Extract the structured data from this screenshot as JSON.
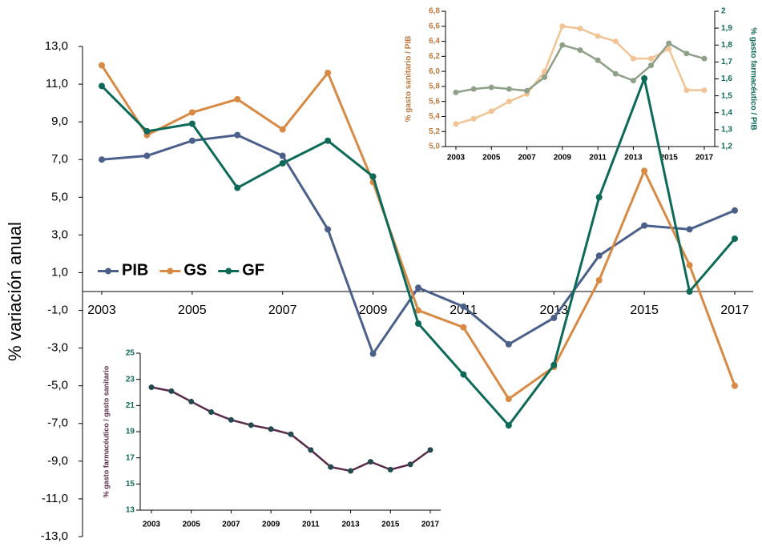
{
  "chart_data": [
    {
      "type": "line",
      "ylabel": "% variación anual",
      "legend": "left",
      "x": [
        2003,
        2004,
        2005,
        2006,
        2007,
        2008,
        2009,
        2010,
        2011,
        2012,
        2013,
        2014,
        2015,
        2016,
        2017
      ],
      "xlim": [
        2003,
        2017
      ],
      "xticks": [
        2003,
        2005,
        2007,
        2009,
        2011,
        2013,
        2015,
        2017
      ],
      "ylim": [
        -13,
        13
      ],
      "yticks": [
        {
          "value": -13,
          "label": "-13,0"
        },
        {
          "value": -11,
          "label": "-11,0"
        },
        {
          "value": -9,
          "label": "-9,0"
        },
        {
          "value": -7,
          "label": "-7,0"
        },
        {
          "value": -5,
          "label": "-5,0"
        },
        {
          "value": -3,
          "label": "-3,0"
        },
        {
          "value": -1,
          "label": "-1,0"
        },
        {
          "value": 1,
          "label": "1,0"
        },
        {
          "value": 3,
          "label": "3,0"
        },
        {
          "value": 5,
          "label": "5,0"
        },
        {
          "value": 7,
          "label": "7,0"
        },
        {
          "value": 9,
          "label": "9,0"
        },
        {
          "value": 11,
          "label": "11,0"
        },
        {
          "value": 13,
          "label": "13,0"
        }
      ],
      "series": [
        {
          "name": "PIB",
          "color": "#4a5f8a",
          "values": [
            7.0,
            7.2,
            8.0,
            8.3,
            7.2,
            3.3,
            -3.3,
            0.2,
            -0.8,
            -2.8,
            -1.4,
            1.9,
            3.5,
            3.3,
            4.3
          ]
        },
        {
          "name": "GS",
          "color": "#d88a44",
          "values": [
            12.0,
            8.3,
            9.5,
            10.2,
            8.6,
            11.6,
            5.8,
            -1.0,
            -1.9,
            -5.7,
            -4.0,
            0.6,
            6.4,
            1.4,
            -5.0
          ]
        },
        {
          "name": "GF",
          "color": "#0e6a58",
          "values": [
            10.9,
            8.5,
            8.9,
            5.5,
            6.8,
            8.0,
            6.1,
            -1.7,
            -4.4,
            -7.1,
            -3.9,
            5.0,
            11.3,
            0.0,
            2.8
          ]
        }
      ]
    },
    {
      "type": "line",
      "ylabel": "% gasto sanitario / PIB",
      "y2label": "% gasto farmacéutico / PIB",
      "x": [
        2003,
        2004,
        2005,
        2006,
        2007,
        2008,
        2009,
        2010,
        2011,
        2012,
        2013,
        2014,
        2015,
        2016,
        2017
      ],
      "xlim": [
        2003,
        2017
      ],
      "xticks": [
        2003,
        2005,
        2007,
        2009,
        2011,
        2013,
        2015,
        2017
      ],
      "ylim": [
        5.0,
        6.8
      ],
      "yticks": [
        {
          "value": 5.0,
          "label": "5,0"
        },
        {
          "value": 5.2,
          "label": "5,2"
        },
        {
          "value": 5.4,
          "label": "5,4"
        },
        {
          "value": 5.6,
          "label": "5,6"
        },
        {
          "value": 5.8,
          "label": "5,8"
        },
        {
          "value": 6.0,
          "label": "6,0"
        },
        {
          "value": 6.2,
          "label": "6,2"
        },
        {
          "value": 6.4,
          "label": "6,4"
        },
        {
          "value": 6.6,
          "label": "6,6"
        },
        {
          "value": 6.8,
          "label": "6,8"
        }
      ],
      "y2lim": [
        1.2,
        2.0
      ],
      "y2ticks": [
        {
          "value": 1.2,
          "label": "1,2"
        },
        {
          "value": 1.3,
          "label": "1,3"
        },
        {
          "value": 1.4,
          "label": "1,4"
        },
        {
          "value": 1.5,
          "label": "1,5"
        },
        {
          "value": 1.6,
          "label": "1,6"
        },
        {
          "value": 1.7,
          "label": "1,7"
        },
        {
          "value": 1.8,
          "label": "1,8"
        },
        {
          "value": 1.9,
          "label": "1,9"
        },
        2
      ],
      "series": [
        {
          "color": "#f2c394",
          "values": [
            5.3,
            5.37,
            5.47,
            5.6,
            5.7,
            6.0,
            6.6,
            6.57,
            6.47,
            6.4,
            6.17,
            6.17,
            6.3,
            5.75,
            5.75
          ]
        },
        {
          "color": "#8fa088",
          "axis": "y2",
          "values": [
            1.52,
            1.54,
            1.55,
            1.54,
            1.53,
            1.61,
            1.8,
            1.77,
            1.71,
            1.63,
            1.59,
            1.68,
            1.81,
            1.75,
            1.72
          ]
        }
      ]
    },
    {
      "type": "line",
      "ylabel": "% gasto farmacéutico / gasto sanitario",
      "x": [
        2003,
        2004,
        2005,
        2006,
        2007,
        2008,
        2009,
        2010,
        2011,
        2012,
        2013,
        2014,
        2015,
        2016,
        2017
      ],
      "xlim": [
        2003,
        2017
      ],
      "xticks": [
        2003,
        2005,
        2007,
        2009,
        2011,
        2013,
        2015,
        2017
      ],
      "ylim": [
        13,
        25
      ],
      "yticks": [
        13,
        15,
        17,
        19,
        21,
        23,
        25
      ],
      "series": [
        {
          "color": "#5a2a4a",
          "marker_color": "#234a4e",
          "values": [
            22.4,
            22.1,
            21.3,
            20.5,
            19.9,
            19.5,
            19.2,
            18.8,
            17.6,
            16.3,
            16.0,
            16.7,
            16.1,
            16.5,
            17.6
          ]
        }
      ]
    }
  ]
}
